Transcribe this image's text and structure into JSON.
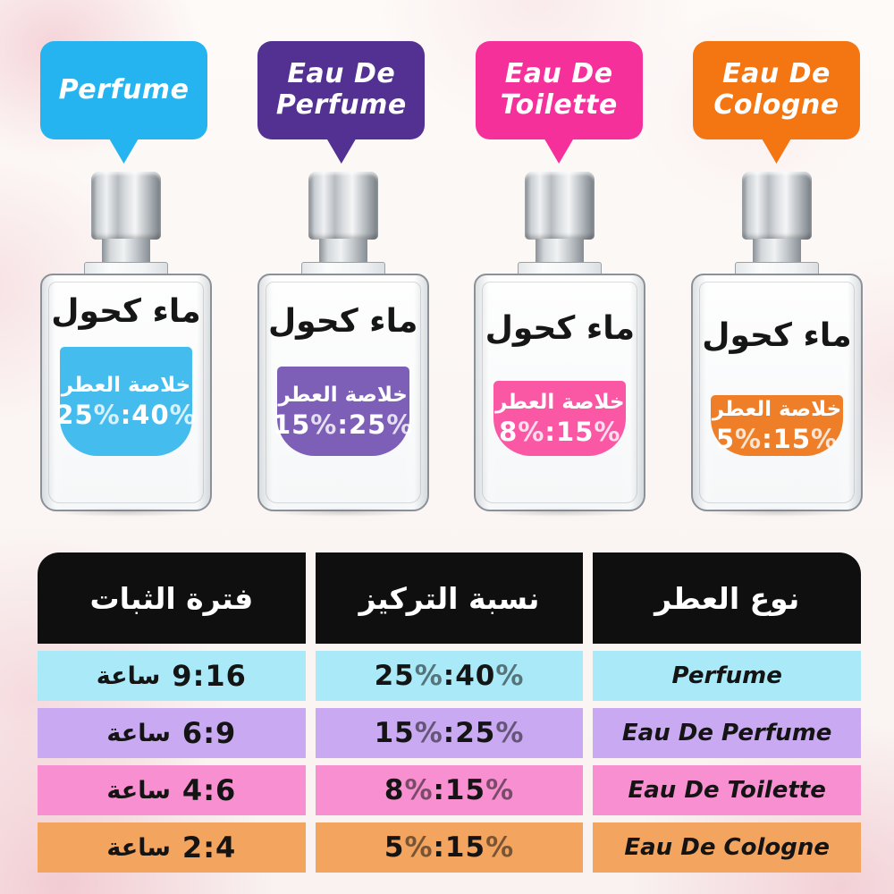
{
  "bubbles": [
    {
      "label": "Perfume",
      "color": "#25b4f0"
    },
    {
      "label": "Eau De Perfume",
      "color": "#533193"
    },
    {
      "label": "Eau De Toilette",
      "color": "#f5309b"
    },
    {
      "label": "Eau De Cologne",
      "color": "#f47612"
    }
  ],
  "bottles": [
    {
      "alcohol_label": "ماء كحول",
      "essence_label": "خلاصة العطر",
      "concentration": "25%:40%",
      "fill_color": "#45bcee"
    },
    {
      "alcohol_label": "ماء كحول",
      "essence_label": "خلاصة العطر",
      "concentration": "15%:25%",
      "fill_color": "#7d5fb7"
    },
    {
      "alcohol_label": "ماء كحول",
      "essence_label": "خلاصة العطر",
      "concentration": "8%:15%",
      "fill_color": "#fa57a5"
    },
    {
      "alcohol_label": "ماء كحول",
      "essence_label": "خلاصة العطر",
      "concentration": "5%:15%",
      "fill_color": "#ee7f28"
    }
  ],
  "table": {
    "headers": {
      "duration": "فترة الثبات",
      "concentration": "نسبة التركيز",
      "type": "نوع العطر"
    },
    "header_bg": "#0f0f0f",
    "rows": [
      {
        "duration_unit": "ساعة",
        "duration_value": "9:16",
        "concentration": "25%:40%",
        "type": "Perfume",
        "row_color": "#a9e9f8"
      },
      {
        "duration_unit": "ساعة",
        "duration_value": "6:9",
        "concentration": "15%:25%",
        "type": "Eau De Perfume",
        "row_color": "#c9a9f1"
      },
      {
        "duration_unit": "ساعة",
        "duration_value": "4:6",
        "concentration": "8%:15%",
        "type": "Eau De Toilette",
        "row_color": "#f88fd0"
      },
      {
        "duration_unit": "ساعة",
        "duration_value": "2:4",
        "concentration": "5%:15%",
        "type": "Eau De Cologne",
        "row_color": "#f3a45f"
      }
    ]
  }
}
